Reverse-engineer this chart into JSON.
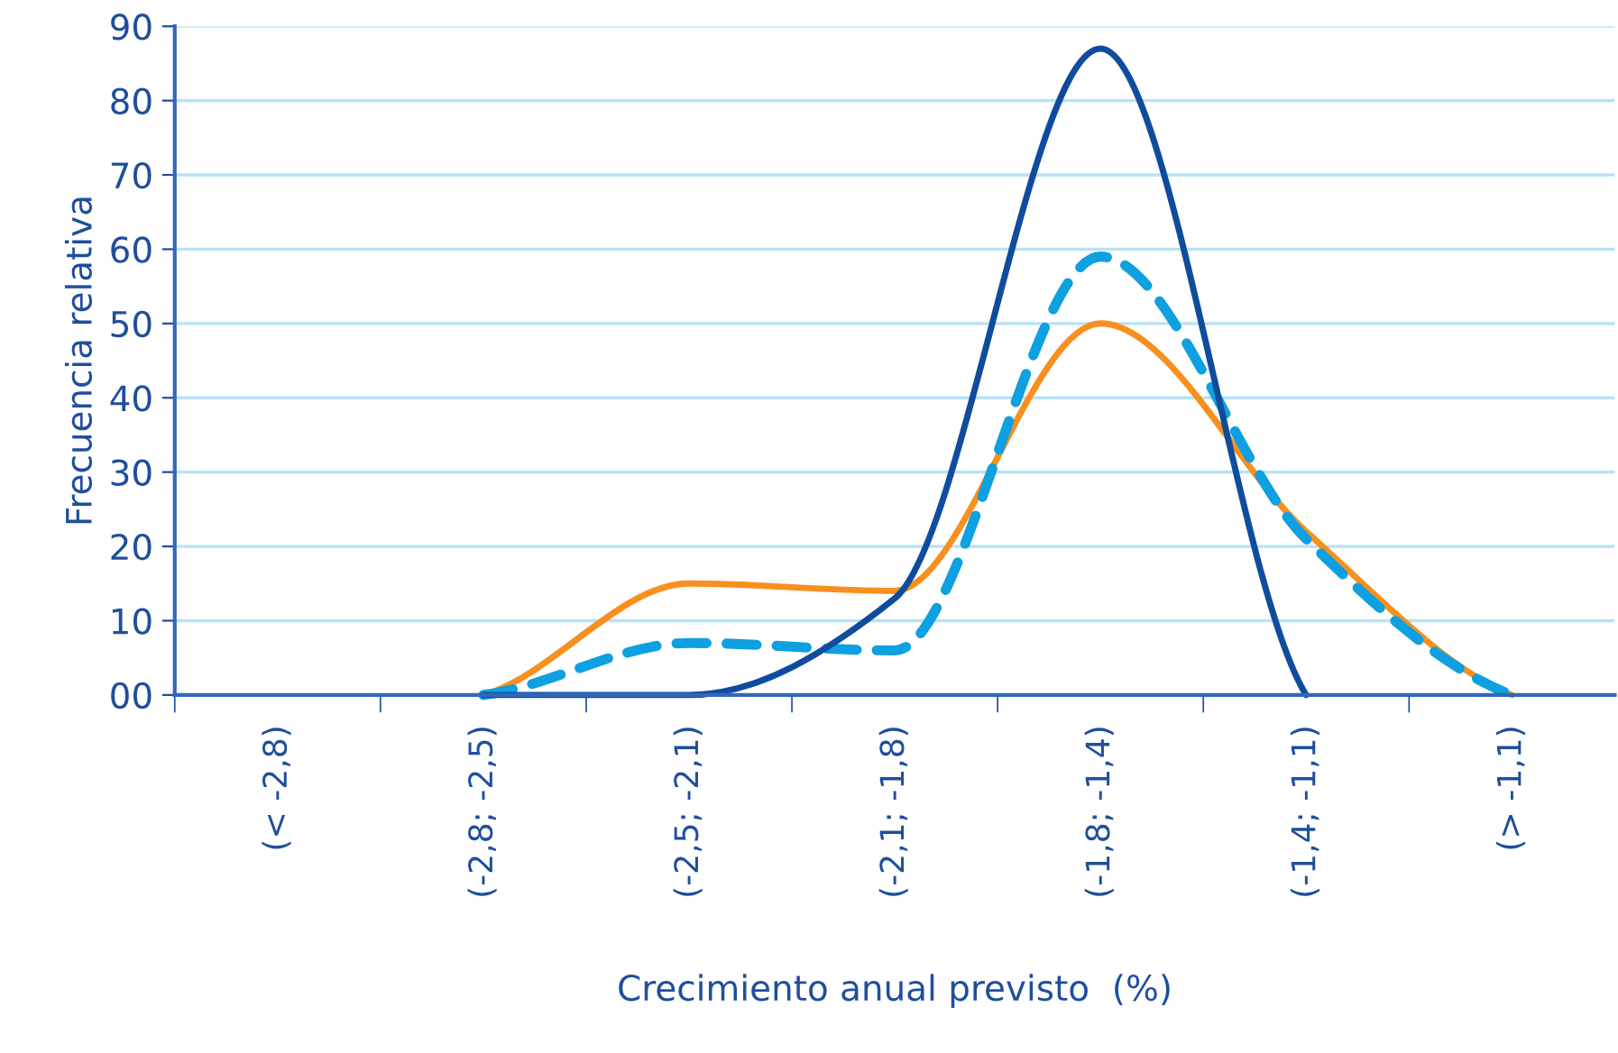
{
  "chart_data": {
    "type": "line",
    "xlabel": "Crecimiento anual previsto  (%)",
    "ylabel": "Frecuencia relativa",
    "categories": [
      "(< -2,8)",
      "(-2,8; -2,5)",
      "(-2,5; -2,1)",
      "(-2,1; -1,8)",
      "(-1,8; -1,4)",
      "(-1,4; -1,1)",
      "(> -1,1)"
    ],
    "series": [
      {
        "color": "#f7901e",
        "values": [
          null,
          0,
          15,
          14,
          50,
          22,
          0
        ],
        "line_style": "solid"
      },
      {
        "color": "#0ea0e0",
        "values": [
          null,
          0,
          7,
          6,
          59,
          21,
          0
        ],
        "line_style": "dashed"
      },
      {
        "color": "#0f4c9e",
        "values": [
          null,
          0,
          0,
          13,
          87,
          0,
          null
        ],
        "line_style": "solid"
      }
    ],
    "ylim": [
      0,
      90
    ],
    "yticks": [
      {
        "value": 0,
        "label": "00"
      },
      10,
      20,
      30,
      40,
      50,
      60,
      70,
      80,
      90
    ],
    "grid": "y",
    "marker": "none"
  }
}
